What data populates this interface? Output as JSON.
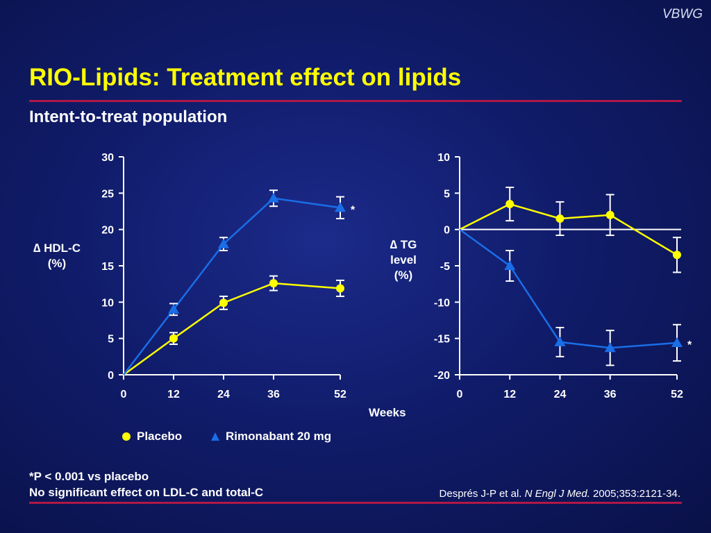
{
  "header": {
    "brand": "VBWG",
    "title": "RIO-Lipids: Treatment effect on lipids",
    "subtitle": "Intent-to-treat population"
  },
  "colors": {
    "placebo": "#ffff00",
    "rimonabant": "#1a6ee8",
    "title": "#ffff00",
    "rule": "#b01846"
  },
  "chart_data": [
    {
      "type": "line",
      "ylabel": "∆ HDL-C (%)",
      "xlabel": "Weeks",
      "x": [
        0,
        12,
        24,
        36,
        52
      ],
      "ylim": [
        0,
        30
      ],
      "yticks": [
        0,
        5,
        10,
        15,
        20,
        25,
        30
      ],
      "series": [
        {
          "name": "Placebo",
          "values": [
            0,
            5.0,
            9.9,
            12.6,
            11.9
          ],
          "err": [
            0,
            0.8,
            0.9,
            1.0,
            1.1
          ]
        },
        {
          "name": "Rimonabant 20 mg",
          "values": [
            0,
            9.0,
            18.0,
            24.3,
            23.0
          ],
          "err": [
            0,
            0.8,
            0.9,
            1.1,
            1.5
          ]
        }
      ],
      "annotations": [
        {
          "text": "*",
          "x": 52,
          "y": 23.0
        }
      ]
    },
    {
      "type": "line",
      "ylabel": "∆ TG level (%)",
      "xlabel": "Weeks",
      "x": [
        0,
        12,
        24,
        36,
        52
      ],
      "ylim": [
        -20,
        10
      ],
      "yticks": [
        -20,
        -15,
        -10,
        -5,
        0,
        5,
        10
      ],
      "series": [
        {
          "name": "Placebo",
          "values": [
            0,
            3.5,
            1.5,
            2.0,
            -3.5
          ],
          "err": [
            0,
            2.3,
            2.3,
            2.8,
            2.4
          ]
        },
        {
          "name": "Rimonabant 20 mg",
          "values": [
            0,
            -5.0,
            -15.5,
            -16.3,
            -15.6
          ],
          "err": [
            0,
            2.1,
            2.0,
            2.4,
            2.5
          ]
        }
      ],
      "annotations": [
        {
          "text": "*",
          "x": 52,
          "y": -15.6
        }
      ]
    }
  ],
  "labels": {
    "hdl_line1": "∆ HDL-C",
    "hdl_line2": "(%)",
    "tg_line1": "∆ TG",
    "tg_line2": "level",
    "tg_line3": "(%)"
  },
  "axis": {
    "weeks": "Weeks"
  },
  "legend": {
    "placebo": "Placebo",
    "rimonabant": "Rimonabant 20 mg"
  },
  "footnotes": {
    "line1": "*P < 0.001 vs placebo",
    "line2": "No significant effect on LDL-C and total-C"
  },
  "citation": {
    "authors": "Després J-P et al.",
    "journal": "N Engl J Med.",
    "details": "2005;353:2121-34."
  }
}
